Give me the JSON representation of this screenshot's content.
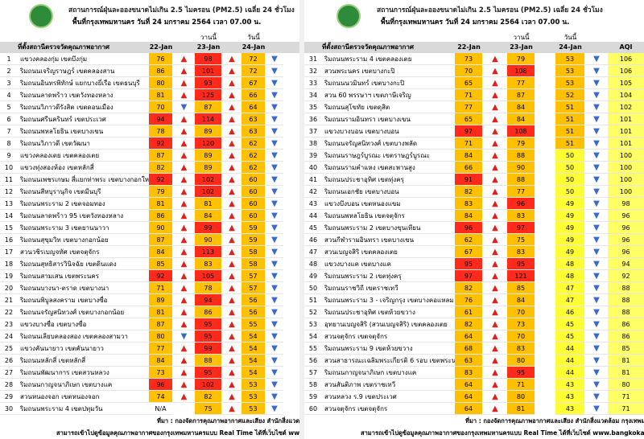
{
  "panels": [
    {
      "header": {
        "title": "สถานการณ์ฝุ่นละอองขนาดไม่เกิน 2.5 ไมครอน (PM2.5) เฉลี่ย 24 ชั่วโมง",
        "subtitle": "พื้นที่กรุงเทพมหานคร วันที่ 24 มกราคม 2564 เวลา 07.00 น.",
        "yesterday": "วานนี้",
        "today": "วันนี้"
      },
      "column_headers": {
        "station": "ที่ตั้งสถานีตรวจวัดคุณภาพอากาศ",
        "d22": "22-Jan",
        "d23": "23-Jan",
        "d24": "24-Jan"
      },
      "rows": [
        {
          "no": 1,
          "station": "แขวงคลองกุ่ม เขตบึงกุ่ม",
          "d22": 76,
          "t22": "▲",
          "d23": 98,
          "t23": "▲",
          "d24": 72,
          "t24": "▼"
        },
        {
          "no": 2,
          "station": "ริมถนนเจริญราษฎร์ เขตคลองสาน",
          "d22": 86,
          "t22": "▲",
          "d23": 101,
          "t23": "▲",
          "d24": 72,
          "t24": "▼"
        },
        {
          "no": 3,
          "station": "ริมถนนอินทรพิทักษ์ แยกบางยี่เรือ เขตธนบุรี",
          "d22": 80,
          "t22": "▲",
          "d23": 93,
          "t23": "▲",
          "d24": 67,
          "t24": "▼"
        },
        {
          "no": 4,
          "station": "ริมถนนลาดพร้าว เขตวังทองหลาง",
          "d22": 81,
          "t22": "▲",
          "d23": 125,
          "t23": "▲",
          "d24": 66,
          "t24": "▼"
        },
        {
          "no": 5,
          "station": "ริมถนนวิภาวดีรังสิต เขตดอนเมือง",
          "d22": 70,
          "t22": "▼",
          "d23": 87,
          "t23": "▲",
          "d24": 64,
          "t24": "▼"
        },
        {
          "no": 6,
          "station": "ริมถนนศรีนครินทร์ เขตประเวศ",
          "d22": 94,
          "t22": "▲",
          "d23": 114,
          "t23": "▲",
          "d24": 63,
          "t24": "▼"
        },
        {
          "no": 7,
          "station": "ริมถนนพหลโยธิน เขตบางเขน",
          "d22": 78,
          "t22": "▲",
          "d23": 89,
          "t23": "▲",
          "d24": 63,
          "t24": "▼"
        },
        {
          "no": 8,
          "station": "ริมถนนวิภาวดี เขตวัฒนา",
          "d22": 92,
          "t22": "▲",
          "d23": 120,
          "t23": "▲",
          "d24": 62,
          "t24": "▼"
        },
        {
          "no": 9,
          "station": "แขวงคลองเตย เขตคลองเตย",
          "d22": 87,
          "t22": "▲",
          "d23": 89,
          "t23": "▲",
          "d24": 62,
          "t24": "▼"
        },
        {
          "no": 10,
          "station": "แขวงทุ่งสองห้อง เขตหลักสี่",
          "d22": 82,
          "t22": "▲",
          "d23": 89,
          "t23": "▲",
          "d24": 62,
          "t24": "▼"
        },
        {
          "no": 11,
          "station": "ริมถนนเพชรเกษม สี่แยกท่าพระ เขตบางกอกใหญ่",
          "d22": 92,
          "t22": "▲",
          "d23": 102,
          "t23": "▲",
          "d24": 60,
          "t24": "▼"
        },
        {
          "no": 12,
          "station": "ริมถนนสีหบุรานุกิจ เขตมีนบุรี",
          "d22": 79,
          "t22": "▲",
          "d23": 102,
          "t23": "▲",
          "d24": 60,
          "t24": "▼"
        },
        {
          "no": 13,
          "station": "ริมถนนพระราม 2 เขตจอมทอง",
          "d22": 81,
          "t22": "▲",
          "d23": 81,
          "t23": "▲",
          "d24": 60,
          "t24": "▼"
        },
        {
          "no": 14,
          "station": "ริมถนนลาดพร้าว 95 เขตวังทองหลาง",
          "d22": 86,
          "t22": "▲",
          "d23": 84,
          "t23": "▲",
          "d24": 60,
          "t24": "▼"
        },
        {
          "no": 15,
          "station": "ริมถนนพระราม 3 เขตยานนาวา",
          "d22": 90,
          "t22": "▲",
          "d23": 99,
          "t23": "▲",
          "d24": 59,
          "t24": "▼"
        },
        {
          "no": 16,
          "station": "ริมถนนสุขุมวิท เขตบางกอกน้อย",
          "d22": 87,
          "t22": "▲",
          "d23": 90,
          "t23": "▲",
          "d24": 59,
          "t24": "▼"
        },
        {
          "no": 17,
          "station": "สวนวชิรเบญจทัศ เขตจตุจักร",
          "d22": 84,
          "t22": "▲",
          "d23": 113,
          "t23": "▲",
          "d24": 58,
          "t24": "▼"
        },
        {
          "no": 18,
          "station": "ริมถนนสุทธิสารวินิจฉัย เขตดินแดง",
          "d22": 85,
          "t22": "▲",
          "d23": 83,
          "t23": "▲",
          "d24": 58,
          "t24": "▼"
        },
        {
          "no": 19,
          "station": "ริมถนนสามเสน เขตพระนคร",
          "d22": 92,
          "t22": "▲",
          "d23": 105,
          "t23": "▲",
          "d24": 57,
          "t24": "▼"
        },
        {
          "no": 20,
          "station": "ริมถนนบางนา-ตราด เขตบางนา",
          "d22": 71,
          "t22": "▲",
          "d23": 78,
          "t23": "▲",
          "d24": 57,
          "t24": "▼"
        },
        {
          "no": 21,
          "station": "ริมถนนพิบูลสงคราม เขตบางซื่อ",
          "d22": 89,
          "t22": "▲",
          "d23": 94,
          "t23": "▲",
          "d24": 56,
          "t24": "▼"
        },
        {
          "no": 22,
          "station": "ริมถนนจรัญสนิทวงศ์ เขตบางกอกน้อย",
          "d22": 81,
          "t22": "▲",
          "d23": 86,
          "t23": "▲",
          "d24": 56,
          "t24": "▼"
        },
        {
          "no": 23,
          "station": "แขวงบางซื่อ เขตบางซื่อ",
          "d22": 87,
          "t22": "▲",
          "d23": 95,
          "t23": "▲",
          "d24": 55,
          "t24": "▼"
        },
        {
          "no": 24,
          "station": "ริมถนนเลียบคลองสอง เขตคลองสามวา",
          "d22": 80,
          "t22": "▼",
          "d23": 95,
          "t23": "▲",
          "d24": 54,
          "t24": "▼"
        },
        {
          "no": 25,
          "station": "แขวงคันนายาว เขตคันนายาว",
          "d22": 77,
          "t22": "▲",
          "d23": 99,
          "t23": "▲",
          "d24": 54,
          "t24": "▼"
        },
        {
          "no": 26,
          "station": "ริมถนนหลักสี่ เขตหลักสี่",
          "d22": 84,
          "t22": "▲",
          "d23": 88,
          "t23": "▲",
          "d24": 54,
          "t24": "▼"
        },
        {
          "no": 27,
          "station": "ริมถนนพัฒนาการ เขตสวนหลวง",
          "d22": 73,
          "t22": "▲",
          "d23": 95,
          "t23": "▲",
          "d24": 54,
          "t24": "▼"
        },
        {
          "no": 28,
          "station": "ริมถนนกาญจนาภิเษก เขตบางแค",
          "d22": 96,
          "t22": "▲",
          "d23": 102,
          "t23": "▲",
          "d24": 53,
          "t24": "▼"
        },
        {
          "no": 29,
          "station": "สวนหนองจอก เขตหนองจอก",
          "d22": 74,
          "t22": "▲",
          "d23": 82,
          "t23": "▲",
          "d24": 53,
          "t24": "▼"
        },
        {
          "no": 30,
          "station": "ริมถนนพระราม 4 เขตปทุมวัน",
          "d22": "N/A",
          "d23": 75,
          "t23": "▲",
          "d24": 53,
          "t24": "▼"
        }
      ],
      "footer": {
        "source": "ที่มา : กองจัดการคุณภาพอากาศและเสียง สำนักสิ่งแวดล้อม กรุงเทพมหานคร",
        "website": "สามารถเข้าไปดูข้อมูลคุณภาพอากาศของกรุงเทพมหานครแบบ Real Time ได้ที่เว็บไซต์ www.bangkokairquality.com"
      }
    },
    {
      "header": {
        "title": "สถานการณ์ฝุ่นละอองขนาดไม่เกิน 2.5 ไมครอน (PM2.5) เฉลี่ย 24 ชั่วโมง",
        "subtitle": "พื้นที่กรุงเทพมหานคร วันที่ 24 มกราคม 2564 เวลา 07.00 น.",
        "yesterday": "วานนี้",
        "today": "วันนี้"
      },
      "column_headers": {
        "station": "ที่ตั้งสถานีตรวจวัดคุณภาพอากาศ",
        "d22": "22-Jan",
        "d23": "23-Jan",
        "d24": "24-Jan",
        "aqi": "AQI"
      },
      "rows": [
        {
          "no": 31,
          "station": "ริมถนนพระราม 4 เขตคลองเตย",
          "d22": 73,
          "t22": "▲",
          "d23": 79,
          "d24": 53,
          "t24": "▼",
          "aqi": 106
        },
        {
          "no": 32,
          "station": "สวนพระนคร เขตบางกะปิ",
          "d22": 70,
          "t22": "▲",
          "d23": 108,
          "d24": 53,
          "t24": "▼",
          "aqi": 106
        },
        {
          "no": 33,
          "station": "ริมถนนนวมินทร์ เขตบางกะปิ",
          "d22": 65,
          "t22": "▲",
          "d23": 77,
          "d24": 53,
          "t24": "▼",
          "aqi": 105
        },
        {
          "no": 34,
          "station": "สวน 60 พรรษาฯ เขตภาษีเจริญ",
          "d22": 71,
          "t22": "▲",
          "d23": 87,
          "d24": 52,
          "t24": "▼",
          "aqi": 104
        },
        {
          "no": 35,
          "station": "ริมถนนสุโขทัย เขตดุสิต",
          "d22": 77,
          "t22": "▲",
          "d23": 84,
          "d24": 51,
          "t24": "▼",
          "aqi": 102
        },
        {
          "no": 36,
          "station": "ริมถนนรามอินทรา เขตบางเขน",
          "d22": 65,
          "t22": "▲",
          "d23": 84,
          "d24": 51,
          "t24": "▼",
          "aqi": 101
        },
        {
          "no": 37,
          "station": "แขวงบางบอน เขตบางบอน",
          "d22": 97,
          "t22": "▲",
          "d23": 108,
          "d24": 51,
          "t24": "▼",
          "aqi": 101
        },
        {
          "no": 38,
          "station": "ริมถนนจรัญสนิทวงศ์ เขตบางพลัด",
          "d22": 71,
          "t22": "▲",
          "d23": 79,
          "d24": 51,
          "t24": "▼",
          "aqi": 101
        },
        {
          "no": 39,
          "station": "ริมถนนราษฎร์บูรณะ เขตราษฎร์บูรณะ",
          "d22": 84,
          "t22": "▲",
          "d23": 88,
          "d24": 50,
          "t24": "▼",
          "aqi": 100
        },
        {
          "no": 40,
          "station": "ริมถนนรามคำแหง เขตสะพานสูง",
          "d22": 66,
          "t22": "▲",
          "d23": 90,
          "d24": 50,
          "t24": "▼",
          "aqi": 100
        },
        {
          "no": 41,
          "station": "ริมถนนประชาอุทิศ เขตทุ่งครุ",
          "d22": 91,
          "t22": "▲",
          "d23": 88,
          "d24": 50,
          "t24": "▼",
          "aqi": 100
        },
        {
          "no": 42,
          "station": "ริมถนนเอกชัย เขตบางบอน",
          "d22": 82,
          "t22": "▲",
          "d23": 77,
          "d24": 50,
          "t24": "▼",
          "aqi": 100
        },
        {
          "no": 43,
          "station": "แขวงบึงบอน เขตหนองแขม",
          "d22": 83,
          "t22": "▲",
          "d23": 96,
          "d24": 49,
          "t24": "▼",
          "aqi": 98
        },
        {
          "no": 44,
          "station": "ริมถนนพหลโยธิน เขตจตุจักร",
          "d22": 84,
          "t22": "▲",
          "d23": 83,
          "d24": 49,
          "t24": "▼",
          "aqi": 96
        },
        {
          "no": 45,
          "station": "ริมถนนพระราม 2 เขตบางขุนเทียน",
          "d22": 96,
          "t22": "▲",
          "d23": 97,
          "d24": 49,
          "t24": "▼",
          "aqi": 96
        },
        {
          "no": 46,
          "station": "สวนกีฬารามอินทรา เขตบางเขน",
          "d22": 62,
          "t22": "▲",
          "d23": 75,
          "d24": 49,
          "t24": "▼",
          "aqi": 96
        },
        {
          "no": 47,
          "station": "สวนเบญจสิริ เขตคลองเตย",
          "d22": 67,
          "t22": "▲",
          "d23": 83,
          "d24": 49,
          "t24": "▼",
          "aqi": 96
        },
        {
          "no": 48,
          "station": "แขวงบางแค เขตบางแค",
          "d22": 95,
          "t22": "▲",
          "d23": 95,
          "d24": 48,
          "t24": "▼",
          "aqi": 94
        },
        {
          "no": 49,
          "station": "ริมถนนพระราม 2 เขตทุ่งครุ",
          "d22": 97,
          "t22": "▲",
          "d23": 121,
          "d24": 48,
          "t24": "▼",
          "aqi": 92
        },
        {
          "no": 50,
          "station": "ริมถนนราชวิถี เขตราชเทวี",
          "d22": 82,
          "t22": "▲",
          "d23": 85,
          "d24": 47,
          "t24": "▼",
          "aqi": 88
        },
        {
          "no": 51,
          "station": "ริมถนนพระราม 3 - เจริญกรุง เขตบางคอแหลม",
          "d22": 76,
          "t22": "▲",
          "d23": 84,
          "d24": 47,
          "t24": "▼",
          "aqi": 88
        },
        {
          "no": 52,
          "station": "ริมถนนประชาอุทิศ เขตห้วยขวาง",
          "d22": 61,
          "t22": "▲",
          "d23": 70,
          "d24": 46,
          "t24": "▼",
          "aqi": 88
        },
        {
          "no": 53,
          "station": "อุทยานเบญจสิริ (สวนเบญจสิริ) เขตคลองเตย",
          "d22": 82,
          "t22": "▲",
          "d23": 73,
          "d24": 45,
          "t24": "▼",
          "aqi": 86
        },
        {
          "no": 54,
          "station": "สวนจตุจักร เขตจตุจักร",
          "d22": 64,
          "t22": "▲",
          "d23": 70,
          "d24": 45,
          "t24": "▼",
          "aqi": 86
        },
        {
          "no": 55,
          "station": "ริมถนนพระราม 9 เขตห้วยขวาง",
          "d22": 68,
          "t22": "▲",
          "d23": 83,
          "d24": 44,
          "t24": "▼",
          "aqi": 85
        },
        {
          "no": 56,
          "station": "สวนสาธารณะเฉลิมพระเกียรติ 6 รอบ เขตพระนคร",
          "d22": 63,
          "t22": "▲",
          "d23": 80,
          "d24": 44,
          "t24": "▼",
          "aqi": 81
        },
        {
          "no": 57,
          "station": "ริมถนนกาญจนาภิเษก เขตบางแค",
          "d22": 83,
          "t22": "▲",
          "d23": 95,
          "d24": 44,
          "t24": "▼",
          "aqi": 81
        },
        {
          "no": 58,
          "station": "สวนสันติภาพ เขตราชเทวี",
          "d22": 64,
          "t22": "▲",
          "d23": 71,
          "d24": 43,
          "t24": "▼",
          "aqi": 80
        },
        {
          "no": 59,
          "station": "สวนหลวง ร.9 เขตประเวศ",
          "d22": 64,
          "t22": "▲",
          "d23": 80,
          "d24": 43,
          "t24": "▼",
          "aqi": 71
        },
        {
          "no": 60,
          "station": "สวนจตุจักร เขตจตุจักร",
          "d22": 64,
          "t22": "▲",
          "d23": 81,
          "d24": 43,
          "t24": "▼",
          "aqi": 71
        }
      ],
      "footer": {
        "source": "ที่มา : กองจัดการคุณภาพอากาศและเสียง สำนักสิ่งแวดล้อม กรุงเทพมหานคร",
        "website": "สามารถเข้าไปดูข้อมูลคุณภาพอากาศของกรุงเทพมหานครแบบ Real Time ได้ที่เว็บไซต์ www.bangkokairquality.com"
      }
    }
  ],
  "levels": [
    {
      "min": 91,
      "color": "#ff2a1a"
    },
    {
      "min": 51,
      "color": "#ffc000"
    },
    {
      "min": 0,
      "color": "#ffff33"
    }
  ],
  "trend_colors": {
    "▲": "#e0201a",
    "▼": "#3868d0"
  }
}
